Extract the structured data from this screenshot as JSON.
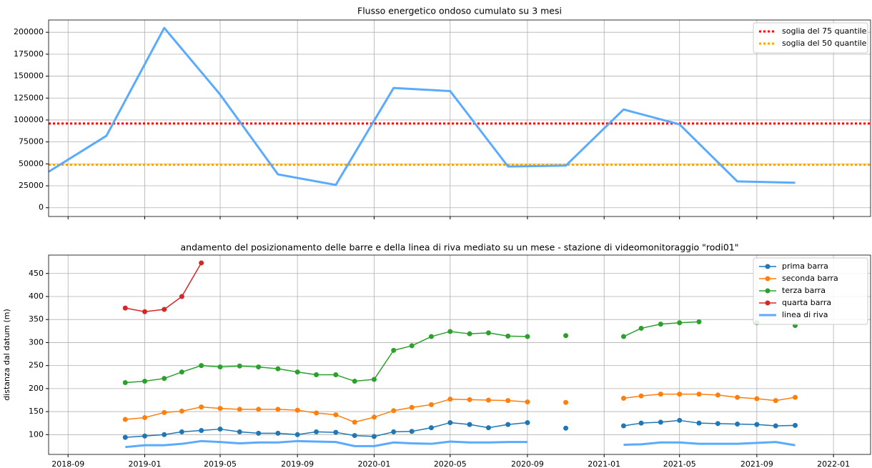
{
  "chart_data": [
    {
      "type": "line",
      "title": "Flusso energetico ondoso cumulato su 3 mesi",
      "x": [
        "2018-08",
        "2018-11",
        "2019-02",
        "2019-05",
        "2019-08",
        "2019-11",
        "2020-02",
        "2020-05",
        "2020-08",
        "2020-11",
        "2021-02",
        "2021-05",
        "2021-08",
        "2021-11"
      ],
      "series": [
        {
          "color": "#5aabff",
          "marker": false,
          "values": [
            41000,
            82000,
            205000,
            129000,
            38000,
            26000,
            136500,
            133000,
            47000,
            48000,
            112000,
            95000,
            30000,
            28500
          ]
        }
      ],
      "hlines": [
        {
          "name": "soglia del 75 quantile",
          "color": "#ff0000",
          "value": 96000
        },
        {
          "name": "soglia del 50 quantile",
          "color": "#ffa500",
          "value": 49000
        }
      ],
      "xlim": [
        "2018-08",
        "2022-03"
      ],
      "xticks": [
        "2018-09",
        "2019-01",
        "2019-05",
        "2019-09",
        "2020-01",
        "2020-05",
        "2020-09",
        "2021-01",
        "2021-05",
        "2021-09",
        "2022-01"
      ],
      "show_xtick_labels": false,
      "ylim": [
        -10000,
        214000
      ],
      "yticks": [
        0,
        25000,
        50000,
        75000,
        100000,
        125000,
        150000,
        175000,
        200000
      ],
      "grid": true,
      "legend": "upper right"
    },
    {
      "type": "line",
      "title": "andamento del posizionamento delle barre e della linea di riva mediato su un mese - stazione di videomonitoraggio \"rodi01\"",
      "y_label": "distanza dal datum (m)",
      "x": [
        "2018-12",
        "2019-01",
        "2019-02",
        "2019-03",
        "2019-04",
        "2019-05",
        "2019-06",
        "2019-07",
        "2019-08",
        "2019-09",
        "2019-10",
        "2019-11",
        "2019-12",
        "2020-01",
        "2020-02",
        "2020-03",
        "2020-04",
        "2020-05",
        "2020-06",
        "2020-07",
        "2020-08",
        "2020-09",
        "2020-10",
        "2020-11",
        "2020-12",
        "2021-01",
        "2021-02",
        "2021-03",
        "2021-04",
        "2021-05",
        "2021-06",
        "2021-07",
        "2021-08",
        "2021-09",
        "2021-10",
        "2021-11"
      ],
      "series": [
        {
          "name": "prima barra",
          "color": "#1f77b4",
          "marker": true,
          "values": [
            94,
            97,
            100,
            106,
            109,
            112,
            106,
            103,
            103,
            100,
            106,
            105,
            98,
            96,
            106,
            107,
            115,
            126,
            122,
            115,
            122,
            126,
            null,
            114,
            null,
            null,
            119,
            125,
            127,
            131,
            125,
            124,
            123,
            122,
            119,
            120
          ]
        },
        {
          "name": "seconda barra",
          "color": "#ff7f0e",
          "marker": true,
          "values": [
            133,
            137,
            148,
            151,
            160,
            157,
            155,
            155,
            155,
            153,
            147,
            143,
            127,
            138,
            152,
            159,
            165,
            177,
            176,
            175,
            174,
            171,
            null,
            170,
            null,
            null,
            179,
            184,
            188,
            188,
            188,
            186,
            181,
            178,
            174,
            181
          ]
        },
        {
          "name": "terza barra",
          "color": "#2ca02c",
          "marker": true,
          "values": [
            213,
            216,
            222,
            236,
            250,
            247,
            249,
            247,
            243,
            236,
            230,
            230,
            216,
            220,
            283,
            293,
            313,
            324,
            319,
            321,
            314,
            313,
            null,
            315,
            null,
            null,
            313,
            331,
            340,
            343,
            345,
            null,
            null,
            343,
            null,
            337
          ]
        },
        {
          "name": "quarta barra",
          "color": "#d62728",
          "marker": true,
          "values": [
            375,
            367,
            372,
            400,
            473,
            null,
            null,
            null,
            null,
            null,
            null,
            null,
            null,
            null,
            null,
            null,
            null,
            null,
            null,
            null,
            null,
            null,
            null,
            null,
            null,
            null,
            null,
            null,
            null,
            null,
            null,
            null,
            null,
            null,
            null,
            null
          ]
        },
        {
          "name": "linea di riva",
          "color": "#5aabff",
          "marker": false,
          "values": [
            73,
            77,
            77,
            80,
            86,
            84,
            81,
            83,
            83,
            86,
            85,
            84,
            75,
            75,
            83,
            81,
            80,
            85,
            83,
            83,
            84,
            84,
            null,
            null,
            null,
            null,
            78,
            79,
            83,
            83,
            80,
            80,
            80,
            82,
            84,
            77
          ]
        }
      ],
      "xlim": [
        "2018-08",
        "2022-03"
      ],
      "xticks": [
        "2018-09",
        "2019-01",
        "2019-05",
        "2019-09",
        "2020-01",
        "2020-05",
        "2020-09",
        "2021-01",
        "2021-05",
        "2021-09",
        "2022-01"
      ],
      "show_xtick_labels": true,
      "ylim": [
        57,
        490
      ],
      "yticks": [
        100,
        150,
        200,
        250,
        300,
        350,
        400,
        450
      ],
      "grid": true,
      "legend": "upper right"
    }
  ]
}
